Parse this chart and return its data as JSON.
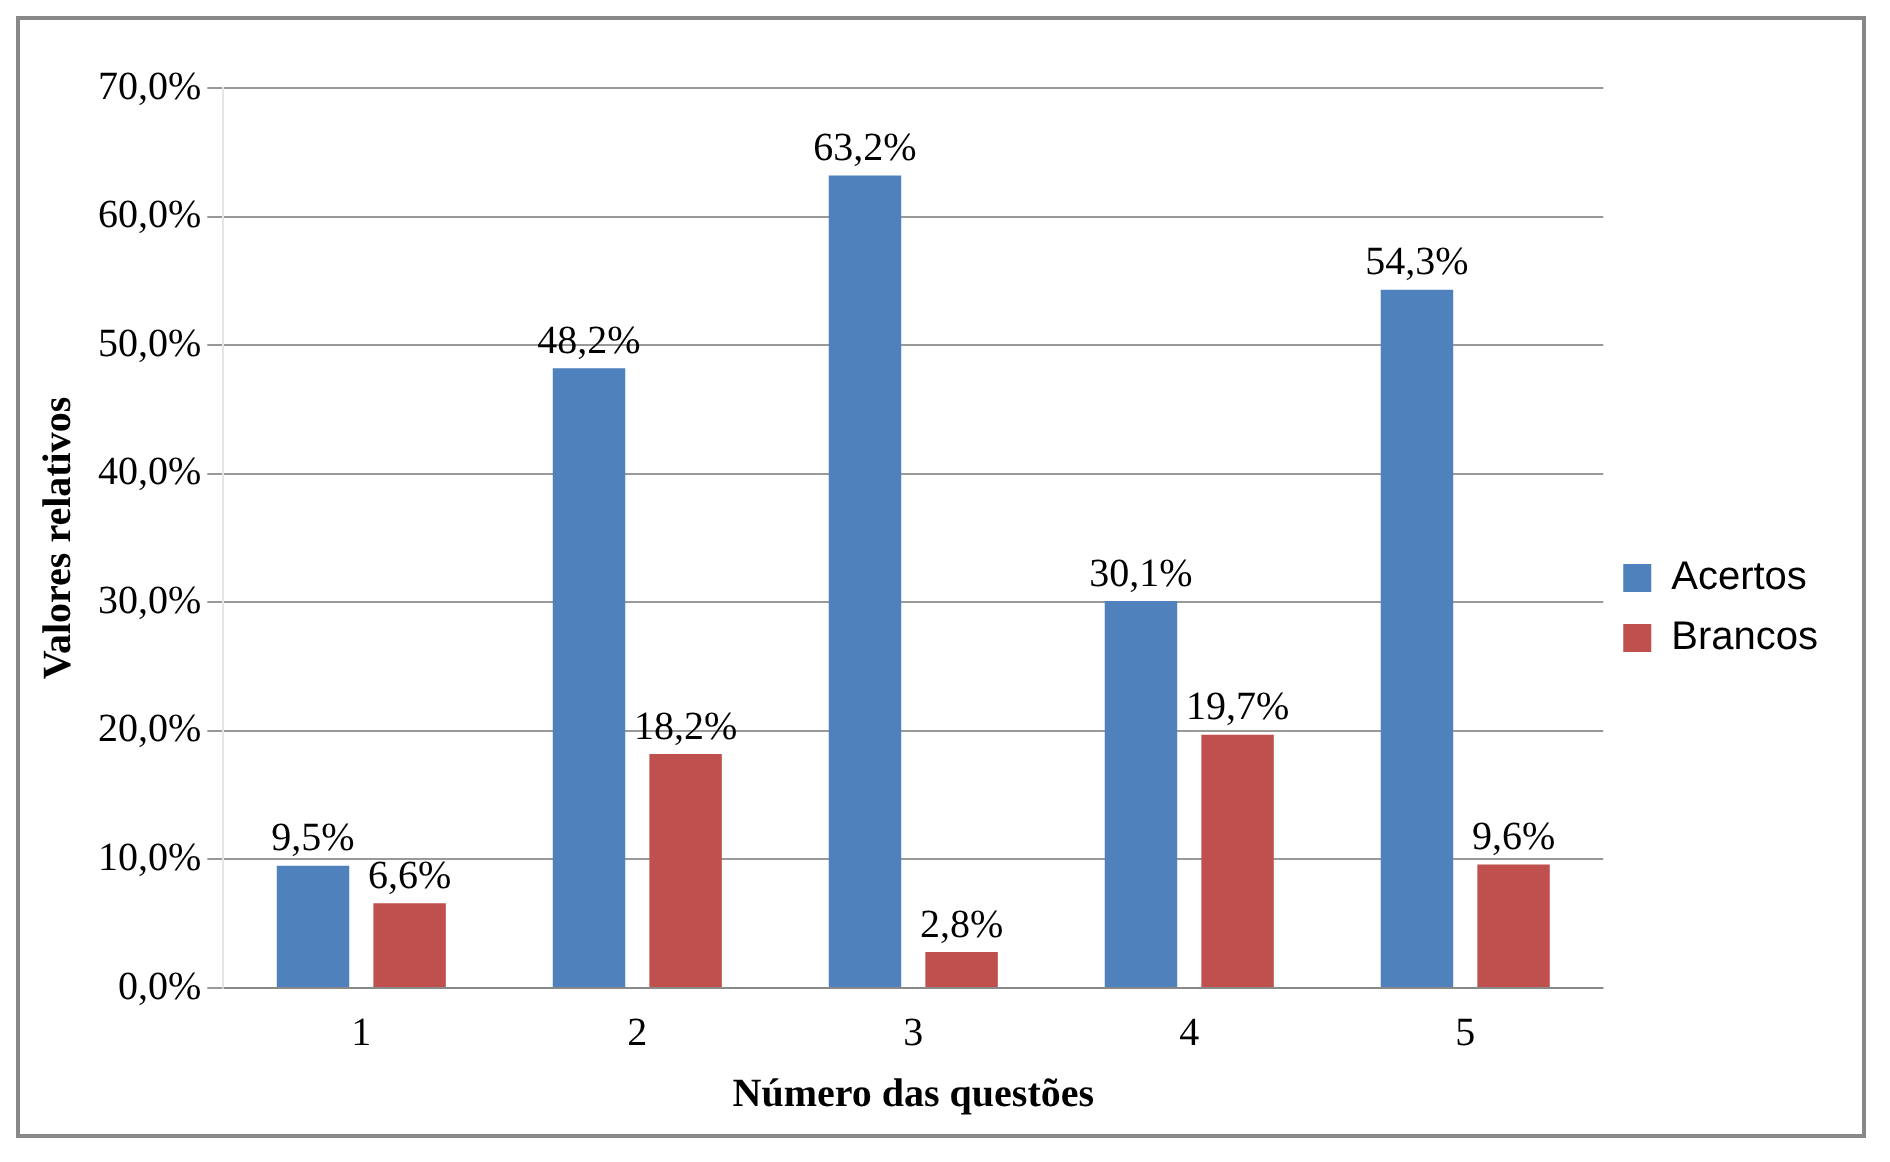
{
  "chart_data": {
    "type": "bar",
    "xlabel": "Número das questões",
    "ylabel": "Valores relativos",
    "categories": [
      "1",
      "2",
      "3",
      "4",
      "5"
    ],
    "series": [
      {
        "name": "Acertos",
        "color": "#4f81bd",
        "values": [
          9.5,
          48.2,
          63.2,
          30.1,
          54.3
        ],
        "value_labels": [
          "9,5%",
          "48,2%",
          "63,2%",
          "30,1%",
          "54,3%"
        ]
      },
      {
        "name": "Brancos",
        "color": "#c0504d",
        "values": [
          6.6,
          18.2,
          2.8,
          19.7,
          9.6
        ],
        "value_labels": [
          "6,6%",
          "18,2%",
          "2,8%",
          "19,7%",
          "9,6%"
        ]
      }
    ],
    "ylim": [
      0,
      70
    ],
    "yticks": [
      {
        "value": 0,
        "label": "0,0%"
      },
      {
        "value": 10,
        "label": "10,0%"
      },
      {
        "value": 20,
        "label": "20,0%"
      },
      {
        "value": 30,
        "label": "30,0%"
      },
      {
        "value": 40,
        "label": "40,0%"
      },
      {
        "value": 50,
        "label": "50,0%"
      },
      {
        "value": 60,
        "label": "60,0%"
      },
      {
        "value": 70,
        "label": "70,0%"
      }
    ],
    "grid": "y",
    "legend": "right"
  }
}
